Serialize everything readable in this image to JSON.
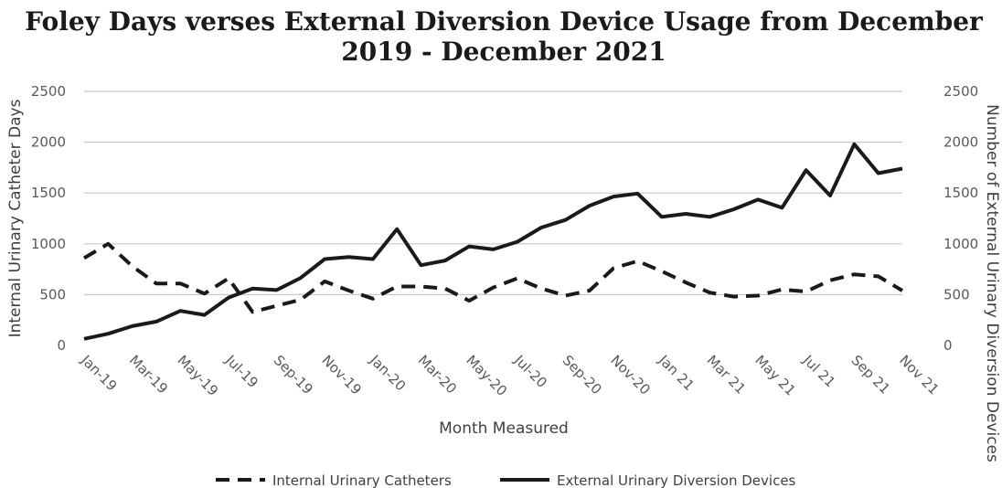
{
  "chart_data": {
    "type": "line",
    "title_lines": [
      "Foley Days verses External Diversion Device Usage from December",
      "2019 - December 2021"
    ],
    "xlabel": "Month Measured",
    "ylabel_left": "Internal Urinary Catheter Days",
    "ylabel_right": "Number of External Urinary Diversion Devices",
    "ylim": [
      0,
      2500
    ],
    "yticks": [
      0,
      500,
      1000,
      1500,
      2000,
      2500
    ],
    "y2lim": [
      0,
      2500
    ],
    "y2ticks": [
      0,
      500,
      1000,
      1500,
      2000,
      2500
    ],
    "grid": true,
    "legend_position": "bottom",
    "categories": [
      "Jan-19",
      "Feb-19",
      "Mar-19",
      "Apr-19",
      "May-19",
      "Jun-19",
      "Jul-19",
      "Aug-19",
      "Sep-19",
      "Oct-19",
      "Nov-19",
      "Dec-19",
      "Jan-20",
      "Feb-20",
      "Mar-20",
      "Apr-20",
      "May-20",
      "Jun-20",
      "Jul-20",
      "Aug-20",
      "Sep-20",
      "Oct-20",
      "Nov-20",
      "Dec-20",
      "Jan 21",
      "Feb 21",
      "Mar 21",
      "Apr 21",
      "May 21",
      "Jun 21",
      "Jul 21",
      "Aug 21",
      "Sep 21",
      "Oct 21",
      "Nov 21"
    ],
    "xtick_labels": [
      "Jan-19",
      "Mar-19",
      "May-19",
      "Jul-19",
      "Sep-19",
      "Nov-19",
      "Jan-20",
      "Mar-20",
      "May-20",
      "Jul-20",
      "Sep-20",
      "Nov-20",
      "Jan 21",
      "Mar 21",
      "May 21",
      "Jul 21",
      "Sep 21",
      "Nov 21"
    ],
    "series": [
      {
        "name": "Internal Urinary Catheters",
        "axis": "left",
        "style": "dashed",
        "color": "#1a1a1a",
        "values": [
          860,
          1000,
          780,
          610,
          610,
          510,
          660,
          330,
          390,
          450,
          630,
          540,
          460,
          580,
          580,
          560,
          440,
          570,
          660,
          560,
          490,
          540,
          760,
          830,
          730,
          620,
          520,
          480,
          490,
          550,
          530,
          640,
          700,
          680,
          540
        ]
      },
      {
        "name": "External Urinary Diversion Devices",
        "axis": "right",
        "style": "solid",
        "color": "#1a1a1a",
        "values": [
          65,
          115,
          190,
          235,
          340,
          300,
          470,
          560,
          545,
          665,
          850,
          870,
          850,
          1145,
          790,
          835,
          975,
          945,
          1020,
          1160,
          1235,
          1375,
          1465,
          1495,
          1265,
          1295,
          1265,
          1340,
          1435,
          1355,
          1725,
          1475,
          1980,
          1695,
          1740
        ]
      }
    ]
  }
}
